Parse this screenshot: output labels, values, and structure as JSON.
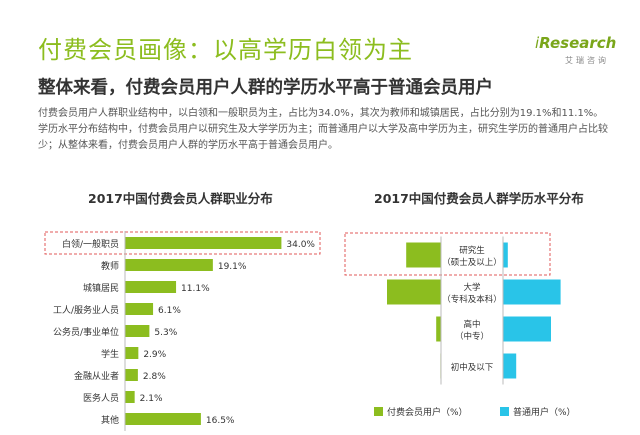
{
  "header": {
    "title": "付费会员画像：以高学历白领为主",
    "subtitle": "整体来看，付费会员用户人群的学历水平高于普通会员用户",
    "description": "付费会员用户人群职业结构中，以白领和一般职员为主，占比为34.0%，其次为教师和城镇居民，占比分别为19.1%和11.1%。学历水平分布结构中，付费会员用户以研究生及大学学历为主；而普通用户以大学及高中学历为主，研究生学历的普通用户占比较少；从整体来看，付费会员用户人群的学历水平高于普通会员用户。"
  },
  "logo": {
    "text_prefix": "i",
    "text_main": "Research",
    "text_cn": "艾瑞咨询"
  },
  "colors": {
    "green": "#8cbd1f",
    "blue": "#29c4e8",
    "highlight": "#e05a5a"
  },
  "chart_data": [
    {
      "type": "bar",
      "orientation": "horizontal",
      "title": "2017中国付费会员人群职业分布",
      "categories": [
        "白领/一般职员",
        "教师",
        "城镇居民",
        "工人/服务业人员",
        "公务员/事业单位",
        "学生",
        "金融从业者",
        "医务人员",
        "其他"
      ],
      "values": [
        34.0,
        19.1,
        11.1,
        6.1,
        5.3,
        2.9,
        2.8,
        2.1,
        16.5
      ],
      "value_labels": [
        "34.0%",
        "19.1%",
        "11.1%",
        "6.1%",
        "5.3%",
        "2.9%",
        "2.8%",
        "2.1%",
        "16.5%"
      ],
      "highlight_category": "白领/一般职员",
      "xlim": [
        0,
        40
      ]
    },
    {
      "type": "bar",
      "orientation": "horizontal-diverging",
      "title": "2017中国付费会员人群学历水平分布",
      "categories": [
        {
          "line1": "研究生",
          "line2": "（硕士及以上）"
        },
        {
          "line1": "大学",
          "line2": "（专科及本科）"
        },
        {
          "line1": "高中",
          "line2": "（中专）"
        },
        {
          "line1": "初中及以下",
          "line2": ""
        }
      ],
      "series": [
        {
          "name": "付费会员用户（%）",
          "values": [
            29,
            45,
            4,
            0.5
          ]
        },
        {
          "name": "普通用户（%）",
          "values": [
            4,
            48,
            40,
            11
          ]
        }
      ],
      "highlight_category": "研究生",
      "xlim": [
        0,
        50
      ]
    }
  ]
}
